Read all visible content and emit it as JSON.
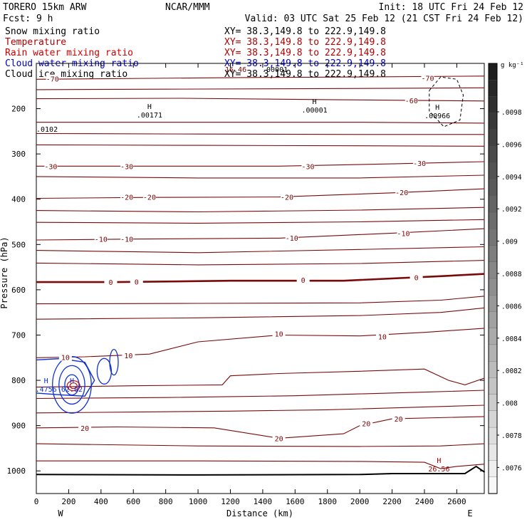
{
  "header": {
    "model": "TORERO  15km ARW",
    "org": "NCAR/MMM",
    "init": "Init: 18 UTC Fri 24 Feb 12",
    "fcst": "Fcst:    9 h",
    "valid": "Valid: 03 UTC Sat 25 Feb 12 (21 CST Fri 24 Feb 12)"
  },
  "fields": [
    {
      "name": "Snow mixing ratio",
      "xy": "XY=  38.3,149.8 to 222.9,149.8",
      "name_color": "#000000",
      "xy_color": "#000000"
    },
    {
      "name": "Temperature",
      "xy": "XY=  38.3,149.8 to 222.9,149.8",
      "name_color": "#b00000",
      "xy_color": "#b00000"
    },
    {
      "name": "Rain water mixing ratio",
      "xy": "XY=  38.3,149.8 to 222.9,149.8",
      "name_color": "#d00000",
      "xy_color": "#b00000"
    },
    {
      "name": "Cloud water mixing ratio",
      "xy": "XY=  38.3,149.8 to 222.9,149.8",
      "name_color": "#0000c8",
      "xy_color": "#0000c8"
    },
    {
      "name": "Cloud ice mixing ratio",
      "xy": "XY=  38.3,149.8 to 222.9,149.8",
      "name_color": "#000000",
      "xy_color": "#000000"
    }
  ],
  "chart_data": {
    "type": "contour",
    "xlabel": "Distance (km)",
    "ylabel": "Pressure (hPa)",
    "x_ticks": [
      0,
      200,
      400,
      600,
      800,
      1000,
      1200,
      1400,
      1600,
      1800,
      2000,
      2200,
      2400,
      2600
    ],
    "y_ticks": [
      200,
      300,
      400,
      500,
      600,
      700,
      800,
      900,
      1000
    ],
    "xlim": [
      0,
      2770
    ],
    "ylim": [
      1050,
      100
    ],
    "left_end_label": "W",
    "right_end_label": "E",
    "colorbar": {
      "unit": "g kg⁻¹",
      "labels": [
        ".0098",
        ".0096",
        ".0094",
        ".0092",
        ".009",
        ".0088",
        ".0086",
        ".0084",
        ".0082",
        ".008",
        ".0078",
        ".0076"
      ]
    },
    "temperature_contour_labels": [
      "-70",
      "-60",
      "-30",
      "-20",
      "-10",
      "0",
      "10",
      "20"
    ],
    "temperature_contour_label_placements": [
      {
        "text": "-70",
        "x": 100,
        "p": 134
      },
      {
        "text": "-70",
        "x": 2420,
        "p": 132
      },
      {
        "text": "-60",
        "x": 2320,
        "p": 182
      },
      {
        "text": "-30",
        "x": 90,
        "p": 327
      },
      {
        "text": "-30",
        "x": 560,
        "p": 327
      },
      {
        "text": "-30",
        "x": 1680,
        "p": 327
      },
      {
        "text": "-30",
        "x": 2370,
        "p": 320
      },
      {
        "text": "-20",
        "x": 560,
        "p": 395
      },
      {
        "text": "-20",
        "x": 700,
        "p": 395
      },
      {
        "text": "-20",
        "x": 1550,
        "p": 395
      },
      {
        "text": "-20",
        "x": 2260,
        "p": 385
      },
      {
        "text": "-10",
        "x": 400,
        "p": 488
      },
      {
        "text": "-10",
        "x": 560,
        "p": 488
      },
      {
        "text": "-10",
        "x": 1580,
        "p": 485
      },
      {
        "text": "-10",
        "x": 2270,
        "p": 475
      },
      {
        "text": "0",
        "x": 460,
        "p": 583
      },
      {
        "text": "0",
        "x": 620,
        "p": 582
      },
      {
        "text": "0",
        "x": 1650,
        "p": 578
      },
      {
        "text": "0",
        "x": 2350,
        "p": 573
      },
      {
        "text": "10",
        "x": 180,
        "p": 749
      },
      {
        "text": "10",
        "x": 570,
        "p": 745
      },
      {
        "text": "10",
        "x": 1500,
        "p": 697
      },
      {
        "text": "10",
        "x": 2140,
        "p": 703
      },
      {
        "text": "20",
        "x": 300,
        "p": 905
      },
      {
        "text": "20",
        "x": 1500,
        "p": 928
      },
      {
        "text": "20",
        "x": 2040,
        "p": 895
      },
      {
        "text": "20",
        "x": 2240,
        "p": 885
      }
    ],
    "extrema_labels": [
      {
        "mark": "H",
        "value": ".00171",
        "x": 700,
        "p": 201
      },
      {
        "mark": "H",
        "value": ".00001",
        "x": 1720,
        "p": 190
      },
      {
        "mark": "H",
        "value": ".00966",
        "x": 2480,
        "p": 202
      },
      {
        "mark": "H",
        "value": "26.56",
        "x": 2490,
        "p": 982
      },
      {
        "mark": "H",
        "value": ".4756",
        "x": 60,
        "p": 806
      },
      {
        "mark": "H",
        "value": "62.02",
        "x": 220,
        "p": 806
      }
    ],
    "partial_labels": [
      ".0102",
      "16.46",
      ".00001"
    ],
    "temperature_isotherms": [
      {
        "level": -70,
        "points": [
          [
            0,
            135
          ],
          [
            700,
            133
          ],
          [
            1400,
            131
          ],
          [
            2000,
            130
          ],
          [
            2772,
            128
          ]
        ]
      },
      {
        "level": -70,
        "points": [
          [
            0,
            158
          ],
          [
            800,
            157
          ],
          [
            1600,
            156
          ],
          [
            2772,
            154
          ]
        ]
      },
      {
        "level": -60,
        "points": [
          [
            0,
            178
          ],
          [
            900,
            177
          ],
          [
            1800,
            180
          ],
          [
            2772,
            183
          ]
        ]
      },
      {
        "level": -50,
        "points": [
          [
            0,
            230
          ],
          [
            1000,
            230
          ],
          [
            2000,
            230
          ],
          [
            2772,
            232
          ]
        ]
      },
      {
        "level": -40,
        "points": [
          [
            0,
            255
          ],
          [
            1000,
            256
          ],
          [
            2000,
            257
          ],
          [
            2772,
            257
          ]
        ]
      },
      {
        "level": -30,
        "points": [
          [
            0,
            280
          ],
          [
            1000,
            281
          ],
          [
            2000,
            282
          ],
          [
            2772,
            283
          ]
        ]
      },
      {
        "level": -30,
        "points": [
          [
            0,
            327
          ],
          [
            600,
            327
          ],
          [
            1500,
            327
          ],
          [
            2200,
            322
          ],
          [
            2772,
            317
          ]
        ]
      },
      {
        "level": -25,
        "points": [
          [
            0,
            350
          ],
          [
            1000,
            353
          ],
          [
            2000,
            353
          ],
          [
            2772,
            347
          ]
        ]
      },
      {
        "level": -20,
        "points": [
          [
            0,
            398
          ],
          [
            700,
            396
          ],
          [
            1500,
            395
          ],
          [
            2200,
            386
          ],
          [
            2772,
            377
          ]
        ]
      },
      {
        "level": -15,
        "points": [
          [
            0,
            425
          ],
          [
            1000,
            428
          ],
          [
            2000,
            424
          ],
          [
            2772,
            418
          ]
        ]
      },
      {
        "level": -10,
        "points": [
          [
            0,
            451
          ],
          [
            1000,
            453
          ],
          [
            2000,
            450
          ],
          [
            2772,
            445
          ]
        ]
      },
      {
        "level": -10,
        "points": [
          [
            0,
            490
          ],
          [
            600,
            488
          ],
          [
            1500,
            486
          ],
          [
            2200,
            475
          ],
          [
            2772,
            465
          ]
        ]
      },
      {
        "level": -5,
        "points": [
          [
            0,
            513
          ],
          [
            1000,
            518
          ],
          [
            2000,
            511
          ],
          [
            2772,
            505
          ]
        ]
      },
      {
        "level": -3,
        "points": [
          [
            0,
            541
          ],
          [
            1000,
            545
          ],
          [
            2000,
            542
          ],
          [
            2772,
            535
          ]
        ]
      },
      {
        "level": 0,
        "points": [
          [
            0,
            583
          ],
          [
            500,
            583
          ],
          [
            1200,
            580
          ],
          [
            1900,
            580
          ],
          [
            2500,
            570
          ],
          [
            2772,
            565
          ]
        ]
      },
      {
        "level": 5,
        "points": [
          [
            0,
            631
          ],
          [
            1000,
            630
          ],
          [
            2000,
            629
          ],
          [
            2500,
            623
          ],
          [
            2772,
            614
          ]
        ]
      },
      {
        "level": 8,
        "points": [
          [
            0,
            665
          ],
          [
            1000,
            662
          ],
          [
            2000,
            657
          ],
          [
            2500,
            650
          ],
          [
            2772,
            640
          ]
        ]
      },
      {
        "level": 10,
        "points": [
          [
            0,
            750
          ],
          [
            300,
            748
          ],
          [
            700,
            742
          ],
          [
            1000,
            715
          ],
          [
            1500,
            700
          ],
          [
            2000,
            702
          ],
          [
            2400,
            694
          ],
          [
            2772,
            685
          ]
        ]
      },
      {
        "level": 13,
        "points": [
          [
            0,
            815
          ],
          [
            600,
            812
          ],
          [
            1150,
            810
          ],
          [
            1200,
            790
          ],
          [
            1500,
            785
          ],
          [
            2000,
            780
          ],
          [
            2400,
            775
          ],
          [
            2550,
            800
          ],
          [
            2650,
            810
          ],
          [
            2772,
            795
          ]
        ]
      },
      {
        "level": 15,
        "points": [
          [
            0,
            840
          ],
          [
            800,
            838
          ],
          [
            1200,
            836
          ],
          [
            1600,
            834
          ],
          [
            2000,
            830
          ],
          [
            2400,
            826
          ],
          [
            2772,
            822
          ]
        ]
      },
      {
        "level": 18,
        "points": [
          [
            0,
            872
          ],
          [
            600,
            870
          ],
          [
            1200,
            868
          ],
          [
            1800,
            865
          ],
          [
            2200,
            861
          ],
          [
            2772,
            855
          ]
        ]
      },
      {
        "level": 20,
        "points": [
          [
            0,
            905
          ],
          [
            500,
            903
          ],
          [
            1100,
            905
          ],
          [
            1500,
            928
          ],
          [
            1900,
            918
          ],
          [
            2000,
            900
          ],
          [
            2200,
            885
          ],
          [
            2772,
            880
          ]
        ]
      },
      {
        "level": 23,
        "points": [
          [
            0,
            940
          ],
          [
            1000,
            945
          ],
          [
            2000,
            946
          ],
          [
            2500,
            945
          ],
          [
            2772,
            940
          ]
        ]
      },
      {
        "level": 25,
        "points": [
          [
            0,
            978
          ],
          [
            1000,
            978
          ],
          [
            2000,
            979
          ],
          [
            2400,
            981
          ],
          [
            2500,
            995
          ],
          [
            2600,
            990
          ],
          [
            2772,
            985
          ]
        ]
      }
    ],
    "ground_surface": [
      [
        0,
        1008
      ],
      [
        1000,
        1009
      ],
      [
        2000,
        1008
      ],
      [
        2200,
        1006
      ],
      [
        2650,
        1006
      ],
      [
        2720,
        990
      ],
      [
        2772,
        1003
      ]
    ],
    "cloud_ice_contour": [
      [
        2430,
        160
      ],
      [
        2500,
        130
      ],
      [
        2600,
        135
      ],
      [
        2640,
        170
      ],
      [
        2620,
        225
      ],
      [
        2520,
        240
      ],
      [
        2430,
        205
      ],
      [
        2430,
        160
      ]
    ],
    "cloud_water_contour": [
      [
        0,
        755
      ],
      [
        150,
        752
      ],
      [
        300,
        760
      ],
      [
        360,
        800
      ],
      [
        300,
        835
      ],
      [
        150,
        832
      ],
      [
        0,
        828
      ]
    ]
  }
}
